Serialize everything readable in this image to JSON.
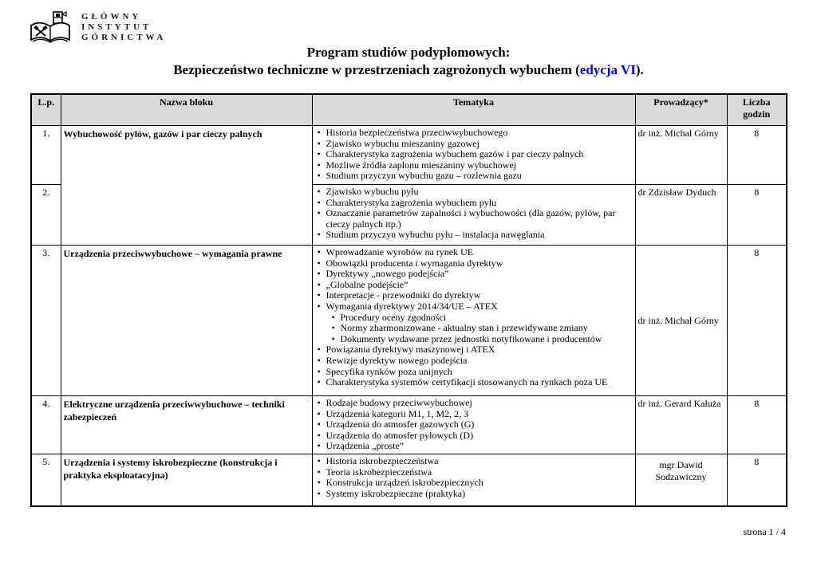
{
  "colors": {
    "edition_text": "#0000ff",
    "header_bg": "#d9d9d9",
    "border": "#000000",
    "page_bg": "#ffffff"
  },
  "logo": {
    "lines": [
      "GŁÓWNY",
      "INSTYTUT",
      "GÓRNICTWA"
    ]
  },
  "title": {
    "line1": "Program studiów podyplomowych:",
    "line2_pre": "Bezpieczeństwo techniczne w przestrzeniach zagrożonych wybuchem (",
    "line2_edition": "edycja VI",
    "line2_post": ")."
  },
  "table": {
    "headers": {
      "lp": "L.p.",
      "block": "Nazwa bloku",
      "topics": "Tematyka",
      "lecturer": "Prowadzący*",
      "hours": "Liczba godzin"
    },
    "rows": [
      {
        "lp": "1.",
        "block": "Wybuchowość pyłów, gazów i par cieczy palnych",
        "topics": [
          "Historia bezpieczeństwa przeciwwybuchowego",
          "Zjawisko wybuchu mieszaniny gazowej",
          "Charakterystyka zagrożenia wybuchem gazów i par cieczy palnych",
          "Możliwe źródła zapłonu mieszaniny wybuchowej",
          "Studium przyczyn wybuchu gazu – rozlewnia gazu"
        ],
        "lecturer": "dr inż. Michał Górny",
        "hours": "8"
      },
      {
        "lp": "2.",
        "topics": [
          "Zjawisko wybuchu pyłu",
          "Charakterystyka zagrożenia wybuchem pyłu",
          "Oznaczanie parametrów zapalności i wybuchowości (dla gazów, pyłów, par cieczy palnych itp.)",
          "Studium przyczyn wybuchu pyłu – instalacja nawęglania"
        ],
        "lecturer": "dr Zdzisław Dyduch",
        "hours": "8"
      },
      {
        "lp": "3.",
        "block": "Urządzenia przeciwwybuchowe – wymagania prawne",
        "topics": [
          "Wprowadzanie wyrobów na rynek UE",
          "Obowiązki producenta i wymagania dyrektyw",
          "Dyrektywy „nowego podejścia”",
          "„Globalne podejście”",
          "Interpretacje - przewodniki do dyrektyw",
          "Wymagania dyrektywy 2014/34/UE – ATEX",
          {
            "text": "Procedury oceny zgodności",
            "sub": true
          },
          {
            "text": "Normy zharmonizowane - aktualny stan i przewidywane zmiany",
            "sub": true
          },
          {
            "text": "Dokumenty wydawane przez jednostki notyfikowane i producentów",
            "sub": true
          },
          "Powiązania dyrektywy maszynowej i ATEX",
          "Rewizje dyrektyw nowego podejścia",
          "Specyfika rynków poza unijnych",
          "Charakterystyka systemów certyfikacji stosowanych na rynkach poza UE"
        ],
        "lecturer": "dr inż. Michał Górny",
        "hours": "8"
      },
      {
        "lp": "4.",
        "block": "Elektryczne urządzenia przeciwwybuchowe – techniki zabezpieczeń",
        "topics": [
          "Rodzaje budowy przeciwwybuchowej",
          "Urządzenia kategorii M1, 1, M2, 2, 3",
          "Urządzenia do atmosfer gazowych (G)",
          "Urządzenia do atmosfer pyłowych (D)",
          "Urządzenia „proste”"
        ],
        "lecturer": "dr inż. Gerard Kałuża",
        "hours": "8"
      },
      {
        "lp": "5.",
        "block": "Urządzenia i systemy iskrobezpieczne (konstrukcja i praktyka eksploatacyjna)",
        "topics": [
          "Historia iskrobezpieczeństwa",
          "Teoria iskrobezpieczeństwa",
          "Konstrukcja urządzeń iskrobezpiecznych",
          "Systemy iskrobezpieczne (praktyka)"
        ],
        "lecturer": "mgr Dawid Sodzawiczny",
        "hours": "8"
      }
    ]
  },
  "footer": {
    "page_label": "strona 1 / 4"
  }
}
